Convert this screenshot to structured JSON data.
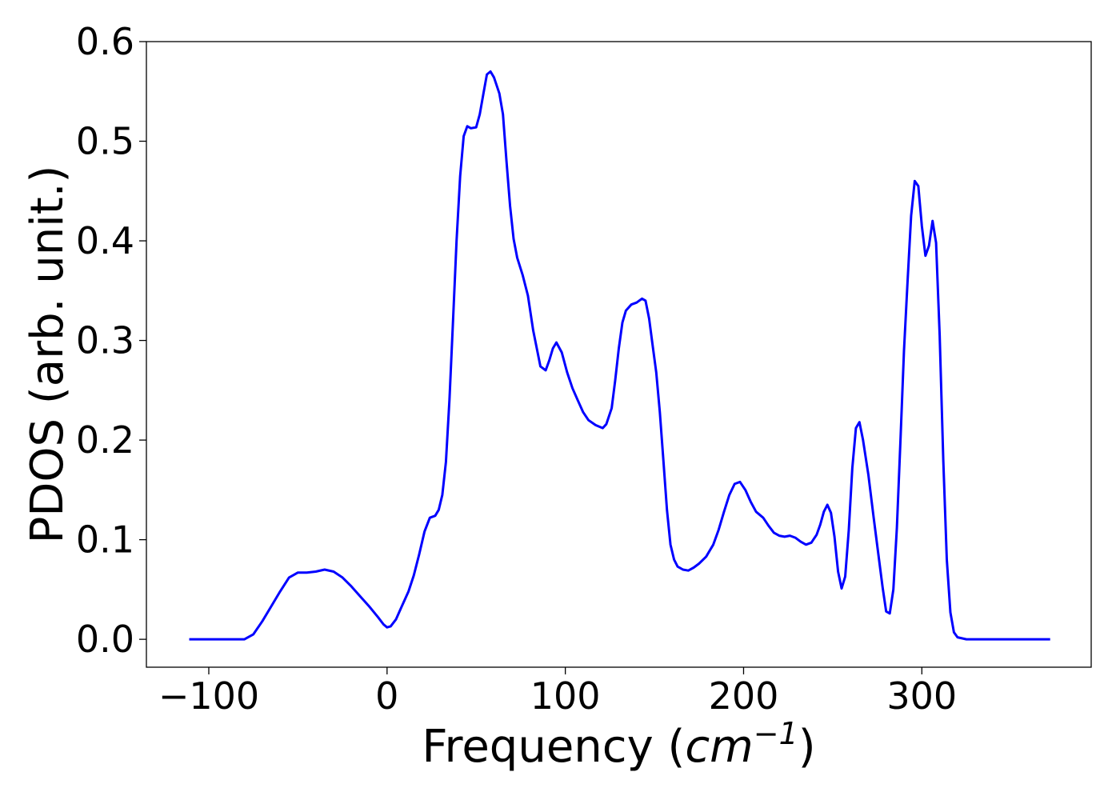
{
  "chart_data": {
    "type": "line",
    "title": "",
    "xlabel": "Frequency (cm⁻¹)",
    "xlabel_parts": {
      "base": "Frequency (",
      "unit": "cm",
      "exponent": "−1",
      "close": ")"
    },
    "ylabel": "PDOS (arb. unit.)",
    "xlim": [
      -135,
      395
    ],
    "ylim": [
      -0.028,
      0.6
    ],
    "xticks": [
      -100,
      0,
      100,
      200,
      300
    ],
    "xtick_labels": [
      "−100",
      "0",
      "100",
      "200",
      "300"
    ],
    "yticks": [
      0.0,
      0.1,
      0.2,
      0.3,
      0.4,
      0.5,
      0.6
    ],
    "ytick_labels": [
      "0.0",
      "0.1",
      "0.2",
      "0.3",
      "0.4",
      "0.5",
      "0.6"
    ],
    "grid": false,
    "legend": "none",
    "series": [
      {
        "color": "#0000ff",
        "points": [
          [
            -111,
            0.0
          ],
          [
            -90,
            0.0
          ],
          [
            -80,
            0.0
          ],
          [
            -75,
            0.005
          ],
          [
            -70,
            0.018
          ],
          [
            -65,
            0.033
          ],
          [
            -60,
            0.048
          ],
          [
            -55,
            0.062
          ],
          [
            -50,
            0.067
          ],
          [
            -45,
            0.067
          ],
          [
            -40,
            0.068
          ],
          [
            -35,
            0.07
          ],
          [
            -30,
            0.068
          ],
          [
            -25,
            0.062
          ],
          [
            -20,
            0.053
          ],
          [
            -15,
            0.043
          ],
          [
            -10,
            0.033
          ],
          [
            -5,
            0.022
          ],
          [
            -2,
            0.015
          ],
          [
            0,
            0.012
          ],
          [
            2,
            0.013
          ],
          [
            5,
            0.02
          ],
          [
            8,
            0.032
          ],
          [
            12,
            0.048
          ],
          [
            15,
            0.064
          ],
          [
            18,
            0.085
          ],
          [
            21,
            0.108
          ],
          [
            24,
            0.122
          ],
          [
            27,
            0.124
          ],
          [
            29,
            0.13
          ],
          [
            31,
            0.145
          ],
          [
            33,
            0.178
          ],
          [
            35,
            0.24
          ],
          [
            37,
            0.32
          ],
          [
            39,
            0.4
          ],
          [
            41,
            0.465
          ],
          [
            43,
            0.505
          ],
          [
            45,
            0.515
          ],
          [
            47,
            0.513
          ],
          [
            50,
            0.514
          ],
          [
            52,
            0.527
          ],
          [
            54,
            0.547
          ],
          [
            56,
            0.567
          ],
          [
            58,
            0.57
          ],
          [
            60,
            0.564
          ],
          [
            63,
            0.548
          ],
          [
            65,
            0.527
          ],
          [
            67,
            0.48
          ],
          [
            69,
            0.435
          ],
          [
            71,
            0.402
          ],
          [
            73,
            0.383
          ],
          [
            76,
            0.366
          ],
          [
            79,
            0.345
          ],
          [
            82,
            0.31
          ],
          [
            84,
            0.292
          ],
          [
            86,
            0.274
          ],
          [
            89,
            0.27
          ],
          [
            91,
            0.28
          ],
          [
            93,
            0.292
          ],
          [
            95,
            0.298
          ],
          [
            98,
            0.288
          ],
          [
            101,
            0.268
          ],
          [
            104,
            0.252
          ],
          [
            107,
            0.24
          ],
          [
            110,
            0.228
          ],
          [
            113,
            0.22
          ],
          [
            117,
            0.215
          ],
          [
            121,
            0.212
          ],
          [
            123,
            0.216
          ],
          [
            126,
            0.232
          ],
          [
            128,
            0.26
          ],
          [
            130,
            0.292
          ],
          [
            132,
            0.318
          ],
          [
            134,
            0.33
          ],
          [
            137,
            0.336
          ],
          [
            140,
            0.338
          ],
          [
            143,
            0.342
          ],
          [
            145,
            0.34
          ],
          [
            147,
            0.322
          ],
          [
            149,
            0.295
          ],
          [
            151,
            0.268
          ],
          [
            153,
            0.228
          ],
          [
            155,
            0.18
          ],
          [
            157,
            0.13
          ],
          [
            159,
            0.095
          ],
          [
            161,
            0.08
          ],
          [
            163,
            0.073
          ],
          [
            166,
            0.07
          ],
          [
            169,
            0.069
          ],
          [
            172,
            0.072
          ],
          [
            175,
            0.076
          ],
          [
            179,
            0.083
          ],
          [
            183,
            0.095
          ],
          [
            186,
            0.11
          ],
          [
            189,
            0.128
          ],
          [
            192,
            0.145
          ],
          [
            195,
            0.156
          ],
          [
            198,
            0.158
          ],
          [
            201,
            0.15
          ],
          [
            204,
            0.138
          ],
          [
            207,
            0.128
          ],
          [
            211,
            0.122
          ],
          [
            214,
            0.114
          ],
          [
            217,
            0.107
          ],
          [
            220,
            0.104
          ],
          [
            223,
            0.103
          ],
          [
            226,
            0.104
          ],
          [
            229,
            0.102
          ],
          [
            232,
            0.098
          ],
          [
            235,
            0.095
          ],
          [
            238,
            0.097
          ],
          [
            241,
            0.105
          ],
          [
            243,
            0.115
          ],
          [
            245,
            0.128
          ],
          [
            247,
            0.135
          ],
          [
            249,
            0.127
          ],
          [
            251,
            0.103
          ],
          [
            253,
            0.068
          ],
          [
            255,
            0.051
          ],
          [
            257,
            0.063
          ],
          [
            259,
            0.11
          ],
          [
            261,
            0.172
          ],
          [
            263,
            0.212
          ],
          [
            265,
            0.218
          ],
          [
            267,
            0.2
          ],
          [
            270,
            0.165
          ],
          [
            273,
            0.122
          ],
          [
            276,
            0.08
          ],
          [
            278,
            0.052
          ],
          [
            280,
            0.028
          ],
          [
            282,
            0.026
          ],
          [
            284,
            0.05
          ],
          [
            286,
            0.112
          ],
          [
            288,
            0.2
          ],
          [
            290,
            0.29
          ],
          [
            292,
            0.36
          ],
          [
            294,
            0.425
          ],
          [
            296,
            0.46
          ],
          [
            298,
            0.455
          ],
          [
            300,
            0.415
          ],
          [
            302,
            0.385
          ],
          [
            304,
            0.395
          ],
          [
            306,
            0.42
          ],
          [
            308,
            0.398
          ],
          [
            310,
            0.305
          ],
          [
            312,
            0.18
          ],
          [
            314,
            0.08
          ],
          [
            316,
            0.027
          ],
          [
            318,
            0.007
          ],
          [
            320,
            0.002
          ],
          [
            325,
            0.0
          ],
          [
            340,
            0.0
          ],
          [
            372,
            0.0
          ]
        ]
      }
    ]
  }
}
